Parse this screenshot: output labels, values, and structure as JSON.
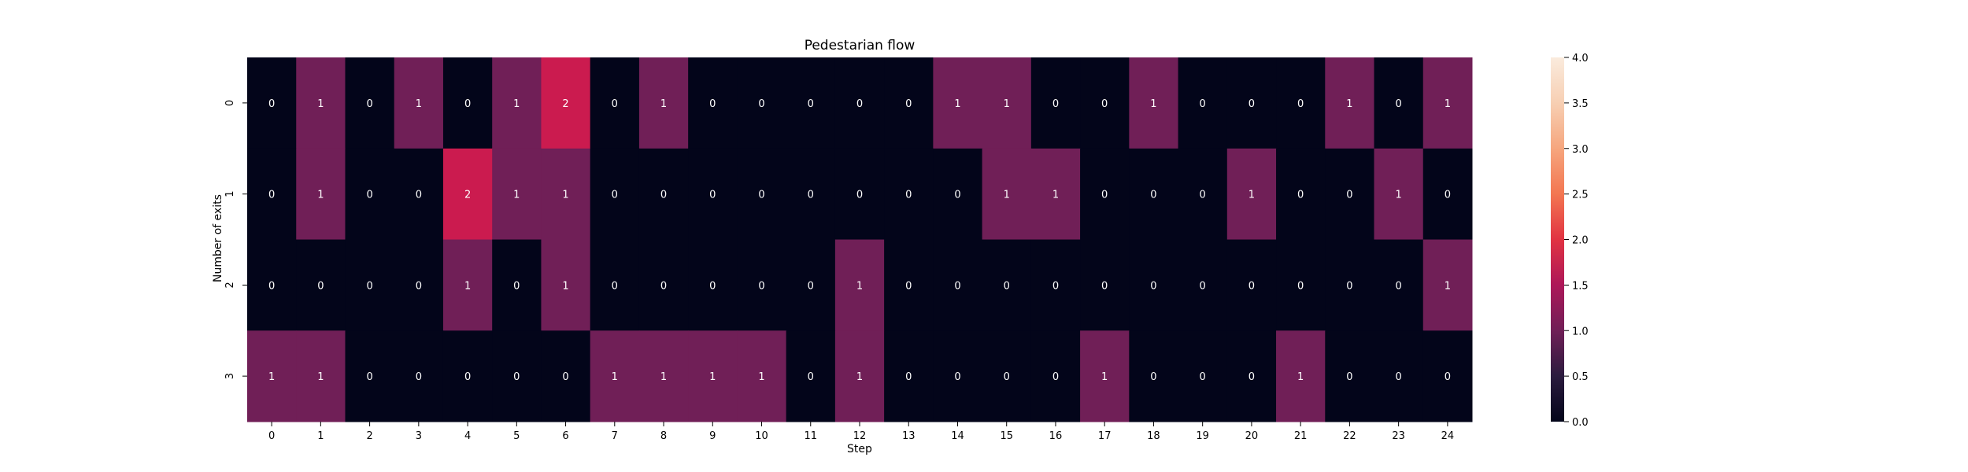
{
  "chart_data": {
    "type": "heatmap",
    "title": "Pedestarian flow",
    "xlabel": "Step",
    "ylabel": "Number of exits",
    "x_categories": [
      "0",
      "1",
      "2",
      "3",
      "4",
      "5",
      "6",
      "7",
      "8",
      "9",
      "10",
      "11",
      "12",
      "13",
      "14",
      "15",
      "16",
      "17",
      "18",
      "19",
      "20",
      "21",
      "22",
      "23",
      "24"
    ],
    "y_categories": [
      "0",
      "1",
      "2",
      "3"
    ],
    "values": [
      [
        0,
        1,
        0,
        1,
        0,
        1,
        2,
        0,
        1,
        0,
        0,
        0,
        0,
        0,
        1,
        1,
        0,
        0,
        1,
        0,
        0,
        0,
        1,
        0,
        1
      ],
      [
        0,
        1,
        0,
        0,
        2,
        1,
        1,
        0,
        0,
        0,
        0,
        0,
        0,
        0,
        0,
        1,
        1,
        0,
        0,
        0,
        1,
        0,
        0,
        1,
        0
      ],
      [
        0,
        0,
        0,
        0,
        1,
        0,
        1,
        0,
        0,
        0,
        0,
        0,
        1,
        0,
        0,
        0,
        0,
        0,
        0,
        0,
        0,
        0,
        0,
        0,
        1
      ],
      [
        1,
        1,
        0,
        0,
        0,
        0,
        0,
        1,
        1,
        1,
        1,
        0,
        1,
        0,
        0,
        0,
        0,
        1,
        0,
        0,
        0,
        1,
        0,
        0,
        0
      ]
    ],
    "colorbar": {
      "range": [
        0.0,
        4.0
      ],
      "ticks": [
        "0.0",
        "0.5",
        "1.0",
        "1.5",
        "2.0",
        "2.5",
        "3.0",
        "3.5",
        "4.0"
      ],
      "colormap": "rocket"
    },
    "annotations": true
  },
  "colors": {
    "v0": "#03051a",
    "v1": "#701f57",
    "v2": "#cb1b4f"
  }
}
